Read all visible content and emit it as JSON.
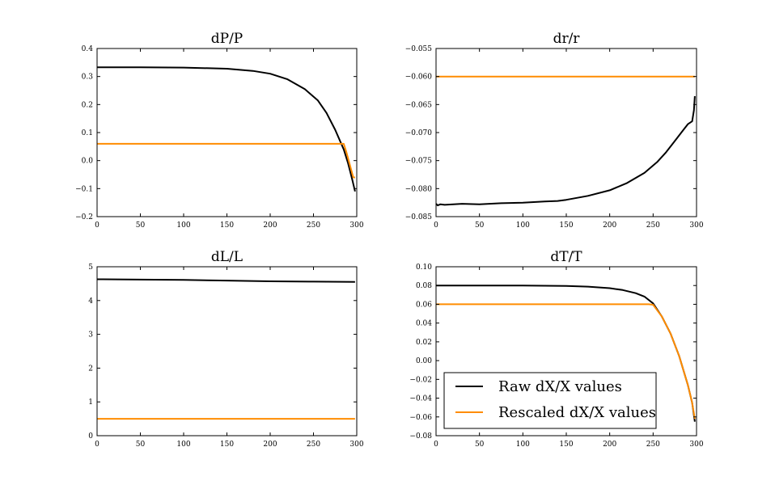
{
  "legend": {
    "entries": [
      {
        "label": "Raw dX/X values",
        "color": "#000000"
      },
      {
        "label": "Rescaled dX/X values",
        "color": "#ff8c00"
      }
    ]
  },
  "chart_data": [
    {
      "type": "line",
      "title": "dP/P",
      "xlim": [
        0,
        300
      ],
      "ylim": [
        -0.2,
        0.4
      ],
      "xticks": [
        "0",
        "50",
        "100",
        "150",
        "200",
        "250",
        "300"
      ],
      "yticks": [
        "−0.2",
        "−0.1",
        "0.0",
        "0.1",
        "0.2",
        "0.3",
        "0.4"
      ],
      "grid": false,
      "series": [
        {
          "color": "#000000",
          "x": [
            0,
            50,
            100,
            150,
            180,
            200,
            220,
            240,
            255,
            265,
            275,
            285,
            290,
            295,
            298
          ],
          "y": [
            0.333,
            0.333,
            0.332,
            0.328,
            0.32,
            0.31,
            0.29,
            0.255,
            0.215,
            0.17,
            0.11,
            0.04,
            -0.01,
            -0.07,
            -0.11
          ]
        },
        {
          "color": "#ff8c00",
          "x": [
            0,
            285,
            288,
            296,
            298
          ],
          "y": [
            0.06,
            0.06,
            0.03,
            -0.06,
            -0.06
          ]
        }
      ]
    },
    {
      "type": "line",
      "title": "dr/r",
      "xlim": [
        0,
        300
      ],
      "ylim": [
        -0.085,
        -0.055
      ],
      "xticks": [
        "0",
        "50",
        "100",
        "150",
        "200",
        "250",
        "300"
      ],
      "yticks": [
        "−0.085",
        "−0.080",
        "−0.075",
        "−0.070",
        "−0.065",
        "−0.060",
        "−0.055"
      ],
      "grid": false,
      "series": [
        {
          "color": "#000000",
          "x": [
            0,
            2,
            5,
            10,
            20,
            30,
            50,
            75,
            100,
            125,
            140,
            150,
            175,
            200,
            220,
            240,
            255,
            265,
            275,
            285,
            290,
            295,
            297,
            298
          ],
          "y": [
            -0.0827,
            -0.083,
            -0.0828,
            -0.0829,
            -0.0828,
            -0.0827,
            -0.0828,
            -0.0826,
            -0.0825,
            -0.0823,
            -0.0822,
            -0.082,
            -0.0813,
            -0.0803,
            -0.079,
            -0.0772,
            -0.0752,
            -0.0735,
            -0.0715,
            -0.0695,
            -0.0685,
            -0.068,
            -0.066,
            -0.0635
          ]
        },
        {
          "color": "#ff8c00",
          "x": [
            0,
            298
          ],
          "y": [
            -0.06,
            -0.06
          ]
        }
      ]
    },
    {
      "type": "line",
      "title": "dL/L",
      "xlim": [
        0,
        300
      ],
      "ylim": [
        0,
        5
      ],
      "xticks": [
        "0",
        "50",
        "100",
        "150",
        "200",
        "250",
        "300"
      ],
      "yticks": [
        "0",
        "1",
        "2",
        "3",
        "4",
        "5"
      ],
      "grid": false,
      "series": [
        {
          "color": "#000000",
          "x": [
            0,
            50,
            100,
            150,
            200,
            250,
            298
          ],
          "y": [
            4.63,
            4.62,
            4.61,
            4.59,
            4.57,
            4.56,
            4.55
          ]
        },
        {
          "color": "#ff8c00",
          "x": [
            0,
            298
          ],
          "y": [
            0.5,
            0.5
          ]
        }
      ]
    },
    {
      "type": "line",
      "title": "dT/T",
      "xlim": [
        0,
        300
      ],
      "ylim": [
        -0.08,
        0.1
      ],
      "xticks": [
        "0",
        "50",
        "100",
        "150",
        "200",
        "250",
        "300"
      ],
      "yticks": [
        "−0.08",
        "−0.06",
        "−0.04",
        "−0.02",
        "0.00",
        "0.02",
        "0.04",
        "0.06",
        "0.08",
        "0.10"
      ],
      "grid": false,
      "legend_position": "lower-left",
      "series": [
        {
          "color": "#000000",
          "x": [
            0,
            50,
            100,
            150,
            175,
            200,
            215,
            230,
            240,
            250,
            260,
            270,
            280,
            290,
            295,
            298
          ],
          "y": [
            0.08,
            0.08,
            0.0799,
            0.0795,
            0.0788,
            0.0772,
            0.0752,
            0.0718,
            0.0682,
            0.061,
            0.047,
            0.029,
            0.005,
            -0.026,
            -0.045,
            -0.065
          ]
        },
        {
          "color": "#ff8c00",
          "x": [
            0,
            240,
            245,
            250,
            260,
            270,
            280,
            290,
            295,
            298
          ],
          "y": [
            0.06,
            0.06,
            0.06,
            0.0595,
            0.047,
            0.029,
            0.005,
            -0.026,
            -0.045,
            -0.062
          ]
        }
      ]
    }
  ]
}
